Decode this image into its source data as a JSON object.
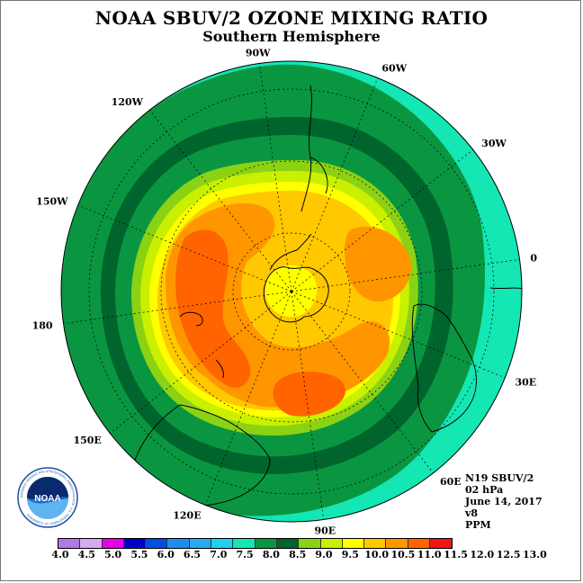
{
  "title": "NOAA SBUV/2 OZONE MIXING RATIO",
  "subtitle": "Southern Hemisphere",
  "longitude_labels": [
    {
      "text": "90W",
      "angle": 90
    },
    {
      "text": "60W",
      "angle": 60
    },
    {
      "text": "30W",
      "angle": 30
    },
    {
      "text": "0",
      "angle": 0
    },
    {
      "text": "30E",
      "angle": -30
    },
    {
      "text": "60E",
      "angle": -60
    },
    {
      "text": "90E",
      "angle": -90
    },
    {
      "text": "120E",
      "angle": -120
    },
    {
      "text": "150E",
      "angle": -150
    },
    {
      "text": "180",
      "angle": 180
    },
    {
      "text": "150W",
      "angle": 150
    },
    {
      "text": "120W",
      "angle": 120
    }
  ],
  "info": {
    "instrument": "N19 SBUV/2",
    "pressure": "02 hPa",
    "date": "June 14, 2017",
    "version": "v8",
    "units": "PPM"
  },
  "logo": {
    "text": "NOAA",
    "ring_text": "NATIONAL OCEANIC AND ATMOSPHERIC ADMINISTRATION · U.S. DEPARTMENT OF COMMERCE"
  },
  "colorbar": {
    "ticks": [
      "4.0",
      "4.5",
      "5.0",
      "5.5",
      "6.0",
      "6.5",
      "7.0",
      "7.5",
      "8.0",
      "8.5",
      "9.0",
      "9.5",
      "10.0",
      "10.5",
      "11.0",
      "11.5",
      "12.0",
      "12.5",
      "13.0"
    ],
    "colors": [
      "#b07ae0",
      "#d9a9f0",
      "#e800e8",
      "#0000c8",
      "#0050e0",
      "#1e8cf0",
      "#28aaf0",
      "#1ed2f0",
      "#14e6b4",
      "#0a9640",
      "#00642d",
      "#8cd214",
      "#c8f000",
      "#ffff00",
      "#ffc800",
      "#ff9600",
      "#ff6400",
      "#f01414",
      "#8c5a3c"
    ]
  },
  "map_fields": {
    "outer": "#14e6b4",
    "band_8_0": "#0a9640",
    "band_8_5": "#00642d",
    "band_9_0": "#0a9640",
    "band_9_5": "#8cd214",
    "band_10_0": "#c8f000",
    "band_10_5": "#ffff00",
    "band_11_0": "#ffc800",
    "band_11_5": "#ff9600",
    "band_12_0": "#ff6400"
  }
}
